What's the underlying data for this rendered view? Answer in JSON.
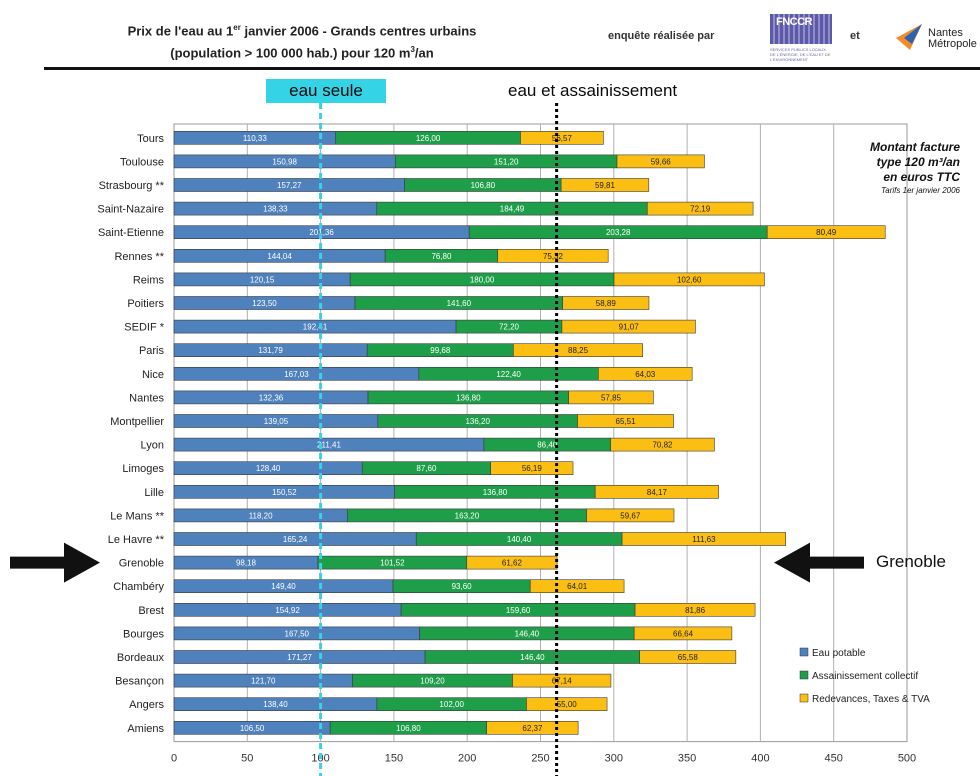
{
  "header": {
    "title_main": "Prix de l'eau au 1",
    "title_sup": "er",
    "title_rest": " janvier 2006 - Grands centres urbains",
    "title_line2": "(population > 100 000 hab.) pour 120 m",
    "title_line2_sup": "3",
    "title_line2_end": "/an",
    "surveyed_by": "enquête réalisée par",
    "and": "et",
    "logo_fnccr": "FNCCR",
    "logo_fnccr_small": "SERVICES PUBLICS LOCAUX DE L'ÉNERGIE, DE L'EAU ET DE L'ENVIRONNEMENT",
    "logo_nantes_1": "Nantes",
    "logo_nantes_2": "Métropole"
  },
  "annotations": {
    "eau_seule": "eau seule",
    "eau_assainissement": "eau et assainissement",
    "grenoble_label": "Grenoble"
  },
  "chart_data": {
    "type": "bar",
    "orientation": "horizontal",
    "stacked": true,
    "categories": [
      "Tours",
      "Toulouse",
      "Strasbourg **",
      "Saint-Nazaire",
      "Saint-Etienne",
      "Rennes **",
      "Reims",
      "Poitiers",
      "SEDIF *",
      "Paris",
      "Nice",
      "Nantes",
      "Montpellier",
      "Lyon",
      "Limoges",
      "Lille",
      "Le Mans **",
      "Le Havre **",
      "Grenoble",
      "Chambéry",
      "Brest",
      "Bourges",
      "Bordeaux",
      "Besançon",
      "Angers",
      "Amiens"
    ],
    "series": [
      {
        "name": "Eau potable",
        "color": "#4f81bd",
        "values": [
          110.33,
          150.98,
          157.27,
          138.33,
          201.36,
          144.04,
          120.15,
          123.5,
          192.41,
          131.79,
          167.03,
          132.36,
          139.05,
          211.41,
          128.4,
          150.52,
          118.2,
          165.24,
          98.18,
          149.4,
          154.92,
          167.5,
          171.27,
          121.7,
          138.4,
          106.5
        ],
        "labels": [
          "110,33",
          "150,98",
          "157,27",
          "138,33",
          "201,36",
          "144,04",
          "120,15",
          "123,50",
          "192,41",
          "131,79",
          "167,03",
          "132,36",
          "139,05",
          "211,41",
          "128,40",
          "150,52",
          "118,20",
          "165,24",
          "98,18",
          "149,40",
          "154,92",
          "167,50",
          "171,27",
          "121,70",
          "138,40",
          "106,50"
        ]
      },
      {
        "name": "Assainissement collectif",
        "color": "#1f9e4a",
        "values": [
          126.0,
          151.2,
          106.8,
          184.49,
          203.28,
          76.8,
          180.0,
          141.6,
          72.2,
          99.68,
          122.4,
          136.8,
          136.2,
          86.4,
          87.6,
          136.8,
          163.2,
          140.4,
          101.52,
          93.6,
          159.6,
          146.4,
          146.4,
          109.2,
          102.0,
          106.8
        ],
        "labels": [
          "126,00",
          "151,20",
          "106,80",
          "184,49",
          "203,28",
          "76,80",
          "180,00",
          "141,60",
          "72,20",
          "99,68",
          "122,40",
          "136,80",
          "136,20",
          "86,40",
          "87,60",
          "136,80",
          "163,20",
          "140,40",
          "101,52",
          "93,60",
          "159,60",
          "146,40",
          "146,40",
          "109,20",
          "102,00",
          "106,80"
        ]
      },
      {
        "name": "Redevances, Taxes & TVA",
        "color": "#fbbf14",
        "values": [
          56.57,
          59.66,
          59.81,
          72.19,
          80.49,
          75.32,
          102.6,
          58.89,
          91.07,
          88.25,
          64.03,
          57.85,
          65.51,
          70.82,
          56.19,
          84.17,
          59.67,
          111.63,
          61.62,
          64.01,
          81.86,
          66.64,
          65.58,
          67.14,
          55.0,
          62.37
        ],
        "labels": [
          "56,57",
          "59,66",
          "59,81",
          "72,19",
          "80,49",
          "75,32",
          "102,60",
          "58,89",
          "91,07",
          "88,25",
          "64,03",
          "57,85",
          "65,51",
          "70,82",
          "56,19",
          "84,17",
          "59,67",
          "111,63",
          "61,62",
          "64,01",
          "81,86",
          "66,64",
          "65,58",
          "67,14",
          "55,00",
          "62,37"
        ]
      }
    ],
    "xlim": [
      0,
      500
    ],
    "xticks": [
      "0",
      "50",
      "100",
      "150",
      "200",
      "250",
      "300",
      "350",
      "400",
      "450",
      "500"
    ],
    "reference_lines": [
      {
        "label": "eau seule",
        "x": 100,
        "color": "#35d3e6",
        "style": "dashed"
      },
      {
        "label": "eau et assainissement",
        "x": 261,
        "color": "#000000",
        "style": "dotted"
      }
    ],
    "highlighted_category": "Grenoble",
    "inset_title": [
      "Montant facture",
      "type 120 m³/an",
      "en euros TTC"
    ],
    "inset_subtitle": "Tarifs 1er janvier 2006",
    "legend_position": "bottom-right",
    "grid": "vertical"
  }
}
